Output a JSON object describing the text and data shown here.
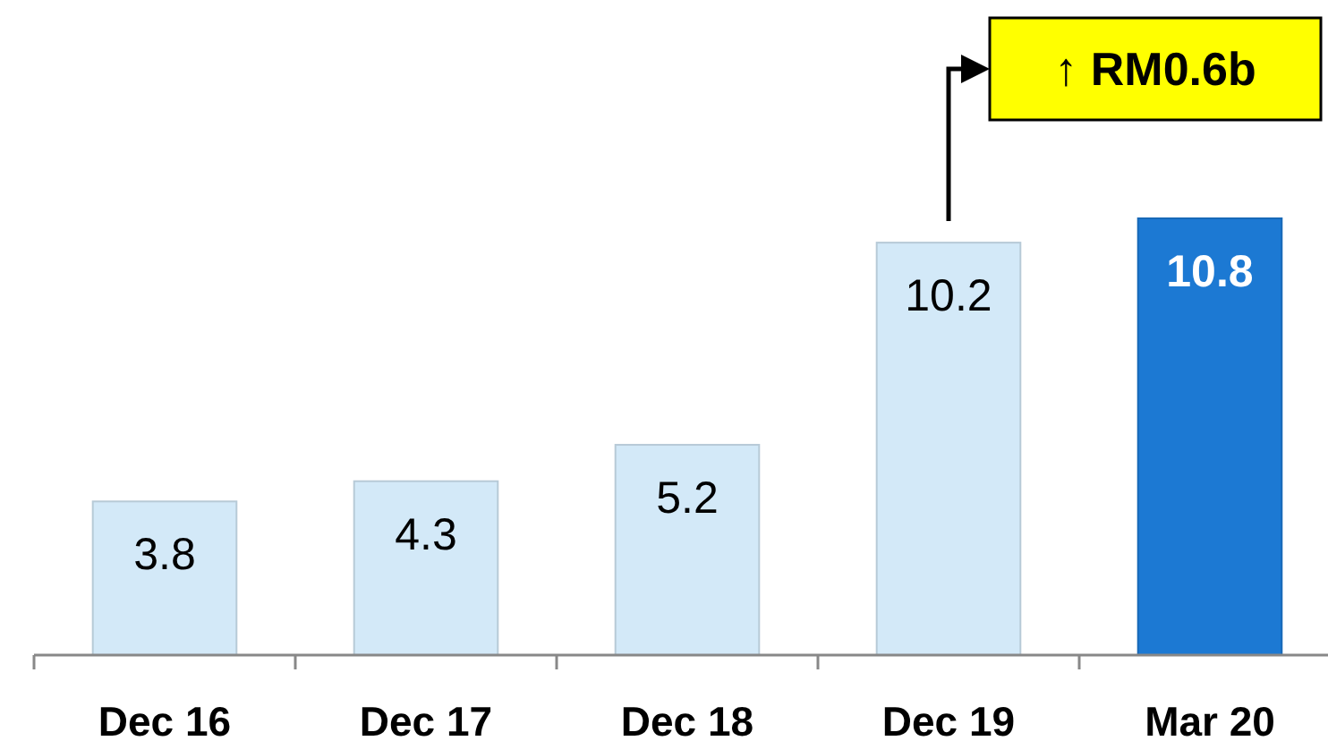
{
  "chart_data": {
    "type": "bar",
    "categories": [
      "Dec 16",
      "Dec 17",
      "Dec 18",
      "Dec 19",
      "Mar 20"
    ],
    "values": [
      3.8,
      4.3,
      5.2,
      10.2,
      10.8
    ],
    "colors": [
      "#d3e9f8",
      "#d3e9f8",
      "#d3e9f8",
      "#d3e9f8",
      "#1c79d3"
    ],
    "data_labels": true,
    "annotations": [
      "↑ RM0.6b"
    ]
  }
}
